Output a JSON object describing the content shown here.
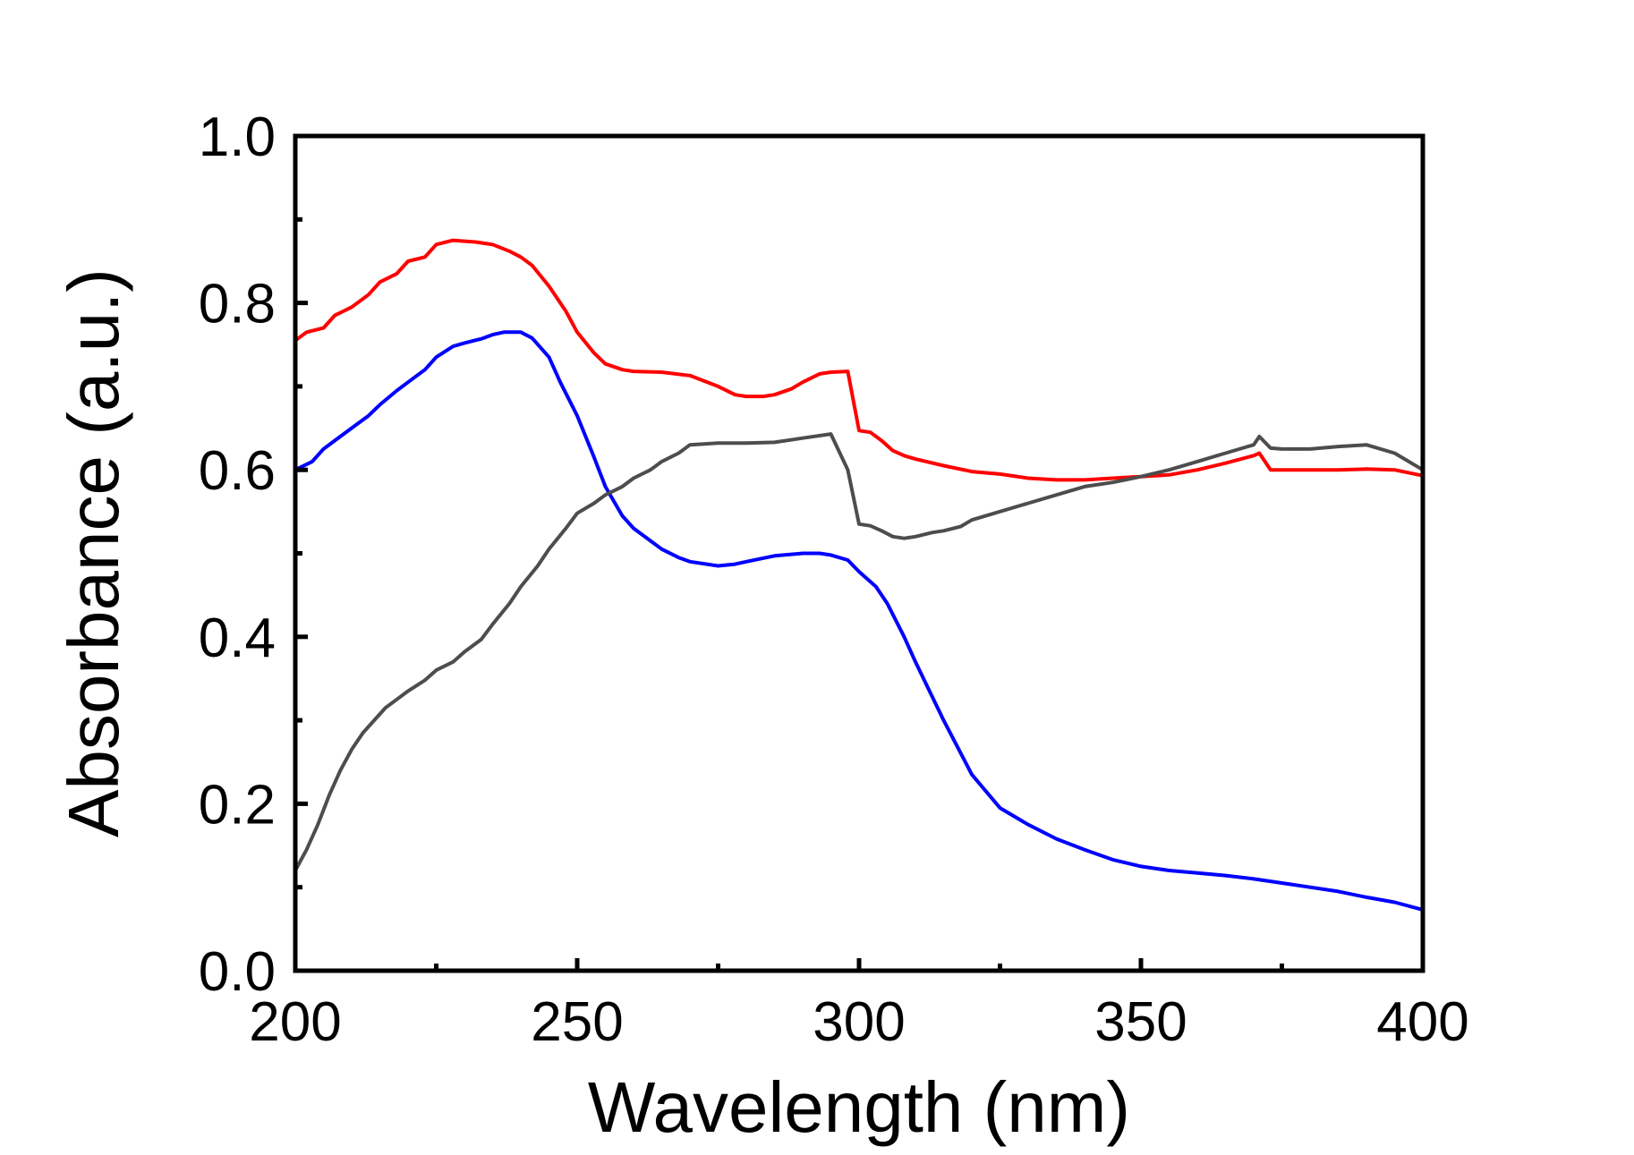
{
  "chart_data": {
    "type": "line",
    "title": "",
    "xlabel": "Wavelength (nm)",
    "ylabel": "Absorbance (a.u.)",
    "xlim": [
      200,
      400
    ],
    "ylim": [
      0.0,
      1.0
    ],
    "x_ticks": [
      200,
      250,
      300,
      350,
      400
    ],
    "x_tick_labels": [
      "200",
      "250",
      "300",
      "350",
      "400"
    ],
    "x_minor_ticks": [
      225,
      275,
      325,
      375
    ],
    "y_ticks": [
      0.0,
      0.2,
      0.4,
      0.6,
      0.8,
      1.0
    ],
    "y_tick_labels": [
      "0.0",
      "0.2",
      "0.4",
      "0.6",
      "0.8",
      "1.0"
    ],
    "y_minor_ticks": [
      0.1,
      0.3,
      0.5,
      0.7,
      0.9
    ],
    "grid": false,
    "legend": "none",
    "series": [
      {
        "name": "red",
        "color": "#ff0000",
        "x": [
          200,
          202,
          205,
          207,
          210,
          213,
          215,
          218,
          220,
          223,
          225,
          228,
          230,
          232,
          235,
          238,
          240,
          242,
          245,
          248,
          250,
          253,
          255,
          258,
          260,
          265,
          270,
          275,
          278,
          280,
          283,
          285,
          288,
          290,
          293,
          295,
          298,
          300,
          302,
          304,
          306,
          308,
          310,
          315,
          320,
          325,
          330,
          335,
          340,
          345,
          350,
          355,
          360,
          365,
          370,
          371,
          373,
          375,
          380,
          385,
          390,
          395,
          400
        ],
        "y": [
          0.755,
          0.765,
          0.77,
          0.785,
          0.795,
          0.81,
          0.825,
          0.835,
          0.85,
          0.855,
          0.87,
          0.875,
          0.874,
          0.873,
          0.87,
          0.862,
          0.855,
          0.845,
          0.82,
          0.79,
          0.765,
          0.74,
          0.727,
          0.72,
          0.718,
          0.717,
          0.713,
          0.7,
          0.69,
          0.688,
          0.688,
          0.69,
          0.697,
          0.705,
          0.715,
          0.717,
          0.718,
          0.647,
          0.645,
          0.635,
          0.623,
          0.617,
          0.613,
          0.605,
          0.598,
          0.595,
          0.59,
          0.588,
          0.588,
          0.59,
          0.592,
          0.594,
          0.6,
          0.608,
          0.617,
          0.62,
          0.6,
          0.6,
          0.6,
          0.6,
          0.601,
          0.6,
          0.593
        ]
      },
      {
        "name": "blue",
        "color": "#0000ff",
        "x": [
          200,
          203,
          205,
          207,
          210,
          213,
          215,
          218,
          220,
          223,
          225,
          228,
          230,
          233,
          235,
          237,
          240,
          242,
          245,
          247,
          250,
          253,
          255,
          258,
          260,
          263,
          265,
          268,
          270,
          275,
          278,
          280,
          285,
          290,
          293,
          295,
          298,
          300,
          303,
          305,
          308,
          310,
          315,
          320,
          325,
          330,
          335,
          340,
          345,
          350,
          355,
          360,
          365,
          370,
          375,
          380,
          385,
          390,
          395,
          400
        ],
        "y": [
          0.6,
          0.61,
          0.625,
          0.635,
          0.65,
          0.665,
          0.678,
          0.695,
          0.705,
          0.72,
          0.735,
          0.748,
          0.752,
          0.757,
          0.762,
          0.765,
          0.765,
          0.758,
          0.735,
          0.705,
          0.665,
          0.615,
          0.58,
          0.545,
          0.53,
          0.515,
          0.505,
          0.495,
          0.49,
          0.485,
          0.487,
          0.49,
          0.497,
          0.5,
          0.5,
          0.498,
          0.492,
          0.478,
          0.46,
          0.44,
          0.4,
          0.37,
          0.3,
          0.235,
          0.195,
          0.175,
          0.158,
          0.145,
          0.133,
          0.125,
          0.12,
          0.117,
          0.114,
          0.11,
          0.105,
          0.1,
          0.095,
          0.088,
          0.082,
          0.073
        ]
      },
      {
        "name": "gray",
        "color": "#4d4d4d",
        "x": [
          200,
          202,
          204,
          206,
          208,
          210,
          212,
          214,
          216,
          218,
          220,
          223,
          225,
          228,
          230,
          233,
          235,
          238,
          240,
          243,
          245,
          248,
          250,
          253,
          255,
          258,
          260,
          263,
          265,
          268,
          270,
          275,
          280,
          285,
          290,
          295,
          298,
          300,
          302,
          304,
          306,
          308,
          310,
          313,
          315,
          318,
          320,
          325,
          330,
          335,
          340,
          345,
          350,
          355,
          360,
          365,
          370,
          371,
          373,
          375,
          380,
          385,
          390,
          395,
          400
        ],
        "y": [
          0.12,
          0.145,
          0.175,
          0.21,
          0.24,
          0.265,
          0.285,
          0.3,
          0.315,
          0.325,
          0.335,
          0.348,
          0.36,
          0.37,
          0.382,
          0.397,
          0.415,
          0.44,
          0.46,
          0.485,
          0.505,
          0.53,
          0.548,
          0.56,
          0.57,
          0.58,
          0.59,
          0.6,
          0.61,
          0.62,
          0.63,
          0.632,
          0.632,
          0.633,
          0.638,
          0.643,
          0.6,
          0.535,
          0.533,
          0.527,
          0.52,
          0.518,
          0.52,
          0.525,
          0.527,
          0.532,
          0.54,
          0.55,
          0.56,
          0.57,
          0.58,
          0.585,
          0.592,
          0.6,
          0.61,
          0.62,
          0.63,
          0.64,
          0.626,
          0.625,
          0.625,
          0.628,
          0.63,
          0.62,
          0.6
        ]
      }
    ]
  }
}
